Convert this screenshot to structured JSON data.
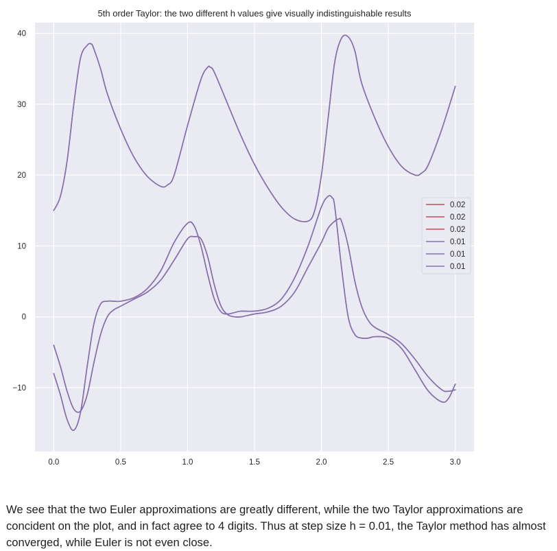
{
  "chart_data": {
    "type": "line",
    "title": "5th order Taylor: the two different h values give visually indistinguishable results",
    "xlabel": "",
    "ylabel": "",
    "xlim": [
      -0.14,
      3.14
    ],
    "ylim": [
      -19,
      41.5
    ],
    "xticks": [
      0.0,
      0.5,
      1.0,
      1.5,
      2.0,
      2.5,
      3.0
    ],
    "xtick_labels": [
      "0.0",
      "0.5",
      "1.0",
      "1.5",
      "2.0",
      "2.5",
      "3.0"
    ],
    "yticks": [
      -10,
      0,
      10,
      20,
      30,
      40
    ],
    "ytick_labels": [
      "−10",
      "0",
      "10",
      "20",
      "30",
      "40"
    ],
    "grid": true,
    "legend_position": "right",
    "colors": {
      "background": "#eaeaf2",
      "grid": "#ffffff",
      "h002": "#c44e52",
      "h001": "#8172b3"
    },
    "series": [
      {
        "name": "0.02",
        "color": "#c44e52",
        "x": [
          0,
          0.05,
          0.1,
          0.15,
          0.2,
          0.25,
          0.28,
          0.3,
          0.35,
          0.4,
          0.5,
          0.6,
          0.7,
          0.8,
          0.85,
          0.9,
          1.0,
          1.1,
          1.15,
          1.17,
          1.2,
          1.3,
          1.4,
          1.5,
          1.6,
          1.7,
          1.8,
          1.9,
          1.95,
          2.0,
          2.05,
          2.1,
          2.15,
          2.2,
          2.25,
          2.3,
          2.4,
          2.5,
          2.6,
          2.7,
          2.75,
          2.8,
          2.9,
          3.0
        ],
        "y": [
          15,
          17,
          22,
          30,
          36.5,
          38.3,
          38.5,
          37.8,
          35,
          31.5,
          26.5,
          22.5,
          19.8,
          18.4,
          18.6,
          20,
          27,
          33.5,
          35.2,
          35.2,
          34.5,
          30,
          25.5,
          21.5,
          18.2,
          15.5,
          13.8,
          13.5,
          15,
          20,
          28,
          36,
          39.3,
          39.5,
          37.5,
          33,
          28,
          24,
          21.2,
          20,
          20.3,
          21.5,
          26.5,
          32.5
        ]
      },
      {
        "name": "0.02",
        "color": "#c44e52",
        "x": [
          0,
          0.05,
          0.1,
          0.15,
          0.2,
          0.25,
          0.3,
          0.35,
          0.4,
          0.45,
          0.5,
          0.6,
          0.7,
          0.8,
          0.9,
          1.0,
          1.05,
          1.1,
          1.15,
          1.2,
          1.25,
          1.3,
          1.35,
          1.4,
          1.5,
          1.6,
          1.7,
          1.8,
          1.9,
          2.0,
          2.05,
          2.08,
          2.1,
          2.15,
          2.2,
          2.25,
          2.3,
          2.35,
          2.4,
          2.5,
          2.6,
          2.7,
          2.8,
          2.9,
          2.95,
          3.0
        ],
        "y": [
          -8,
          -11,
          -14.5,
          -16,
          -13.5,
          -7,
          -1,
          1.8,
          2.2,
          2.2,
          2.2,
          2.7,
          4,
          6.5,
          10.5,
          13.2,
          12.8,
          10,
          6,
          2.5,
          0.7,
          0.4,
          0.6,
          0.8,
          0.8,
          1.2,
          2.5,
          5.5,
          10,
          15.5,
          17,
          16.8,
          15.5,
          7,
          0,
          -2.5,
          -3,
          -3,
          -2.8,
          -3,
          -4.5,
          -7.5,
          -10.5,
          -12,
          -11.5,
          -9.5
        ]
      },
      {
        "name": "0.02",
        "color": "#c44e52",
        "x": [
          0,
          0.05,
          0.1,
          0.15,
          0.2,
          0.25,
          0.3,
          0.35,
          0.4,
          0.45,
          0.5,
          0.6,
          0.7,
          0.8,
          0.9,
          1.0,
          1.05,
          1.1,
          1.15,
          1.2,
          1.25,
          1.3,
          1.35,
          1.4,
          1.5,
          1.6,
          1.7,
          1.8,
          1.9,
          2.0,
          2.05,
          2.1,
          2.13,
          2.15,
          2.2,
          2.25,
          2.3,
          2.35,
          2.4,
          2.5,
          2.6,
          2.7,
          2.8,
          2.9,
          2.95,
          3.0
        ],
        "y": [
          -4,
          -7,
          -10.5,
          -13,
          -13.3,
          -11,
          -6.5,
          -2.5,
          0,
          1,
          1.5,
          2.5,
          3.5,
          5.2,
          8,
          11,
          11.3,
          11,
          8.5,
          4.5,
          1.5,
          0.3,
          0,
          0,
          0.4,
          0.7,
          1.5,
          3.5,
          7,
          10.5,
          12.5,
          13.5,
          13.8,
          13.5,
          10,
          5,
          1.5,
          -0.5,
          -1.5,
          -2.5,
          -3.8,
          -6,
          -8.5,
          -10.3,
          -10.5,
          -10.3
        ]
      },
      {
        "name": "0.01",
        "color": "#8172b3",
        "x": [
          0,
          0.05,
          0.1,
          0.15,
          0.2,
          0.25,
          0.28,
          0.3,
          0.35,
          0.4,
          0.5,
          0.6,
          0.7,
          0.8,
          0.85,
          0.9,
          1.0,
          1.1,
          1.15,
          1.17,
          1.2,
          1.3,
          1.4,
          1.5,
          1.6,
          1.7,
          1.8,
          1.9,
          1.95,
          2.0,
          2.05,
          2.1,
          2.15,
          2.2,
          2.25,
          2.3,
          2.4,
          2.5,
          2.6,
          2.7,
          2.75,
          2.8,
          2.9,
          3.0
        ],
        "y": [
          15,
          17,
          22,
          30,
          36.5,
          38.3,
          38.5,
          37.8,
          35,
          31.5,
          26.5,
          22.5,
          19.8,
          18.4,
          18.6,
          20,
          27,
          33.5,
          35.2,
          35.2,
          34.5,
          30,
          25.5,
          21.5,
          18.2,
          15.5,
          13.8,
          13.5,
          15,
          20,
          28,
          36,
          39.3,
          39.5,
          37.5,
          33,
          28,
          24,
          21.2,
          20,
          20.3,
          21.5,
          26.5,
          32.5
        ]
      },
      {
        "name": "0.01",
        "color": "#8172b3",
        "x": [
          0,
          0.05,
          0.1,
          0.15,
          0.2,
          0.25,
          0.3,
          0.35,
          0.4,
          0.45,
          0.5,
          0.6,
          0.7,
          0.8,
          0.9,
          1.0,
          1.05,
          1.1,
          1.15,
          1.2,
          1.25,
          1.3,
          1.35,
          1.4,
          1.5,
          1.6,
          1.7,
          1.8,
          1.9,
          2.0,
          2.05,
          2.08,
          2.1,
          2.15,
          2.2,
          2.25,
          2.3,
          2.35,
          2.4,
          2.5,
          2.6,
          2.7,
          2.8,
          2.9,
          2.95,
          3.0
        ],
        "y": [
          -8,
          -11,
          -14.5,
          -16,
          -13.5,
          -7,
          -1,
          1.8,
          2.2,
          2.2,
          2.2,
          2.7,
          4,
          6.5,
          10.5,
          13.2,
          12.8,
          10,
          6,
          2.5,
          0.7,
          0.4,
          0.6,
          0.8,
          0.8,
          1.2,
          2.5,
          5.5,
          10,
          15.5,
          17,
          16.8,
          15.5,
          7,
          0,
          -2.5,
          -3,
          -3,
          -2.8,
          -3,
          -4.5,
          -7.5,
          -10.5,
          -12,
          -11.5,
          -9.5
        ]
      },
      {
        "name": "0.01",
        "color": "#8172b3",
        "x": [
          0,
          0.05,
          0.1,
          0.15,
          0.2,
          0.25,
          0.3,
          0.35,
          0.4,
          0.45,
          0.5,
          0.6,
          0.7,
          0.8,
          0.9,
          1.0,
          1.05,
          1.1,
          1.15,
          1.2,
          1.25,
          1.3,
          1.35,
          1.4,
          1.5,
          1.6,
          1.7,
          1.8,
          1.9,
          2.0,
          2.05,
          2.1,
          2.13,
          2.15,
          2.2,
          2.25,
          2.3,
          2.35,
          2.4,
          2.5,
          2.6,
          2.7,
          2.8,
          2.9,
          2.95,
          3.0
        ],
        "y": [
          -4,
          -7,
          -10.5,
          -13,
          -13.3,
          -11,
          -6.5,
          -2.5,
          0,
          1,
          1.5,
          2.5,
          3.5,
          5.2,
          8,
          11,
          11.3,
          11,
          8.5,
          4.5,
          1.5,
          0.3,
          0,
          0,
          0.4,
          0.7,
          1.5,
          3.5,
          7,
          10.5,
          12.5,
          13.5,
          13.8,
          13.5,
          10,
          5,
          1.5,
          -0.5,
          -1.5,
          -2.5,
          -3.8,
          -6,
          -8.5,
          -10.3,
          -10.5,
          -10.3
        ]
      }
    ]
  },
  "caption": "We see that the two Euler approximations are greatly different, while the two Taylor approximations are concident on the plot, and in fact agree to 4 digits. Thus at step size h = 0.01, the Taylor method has almost converged, while Euler is not even close."
}
